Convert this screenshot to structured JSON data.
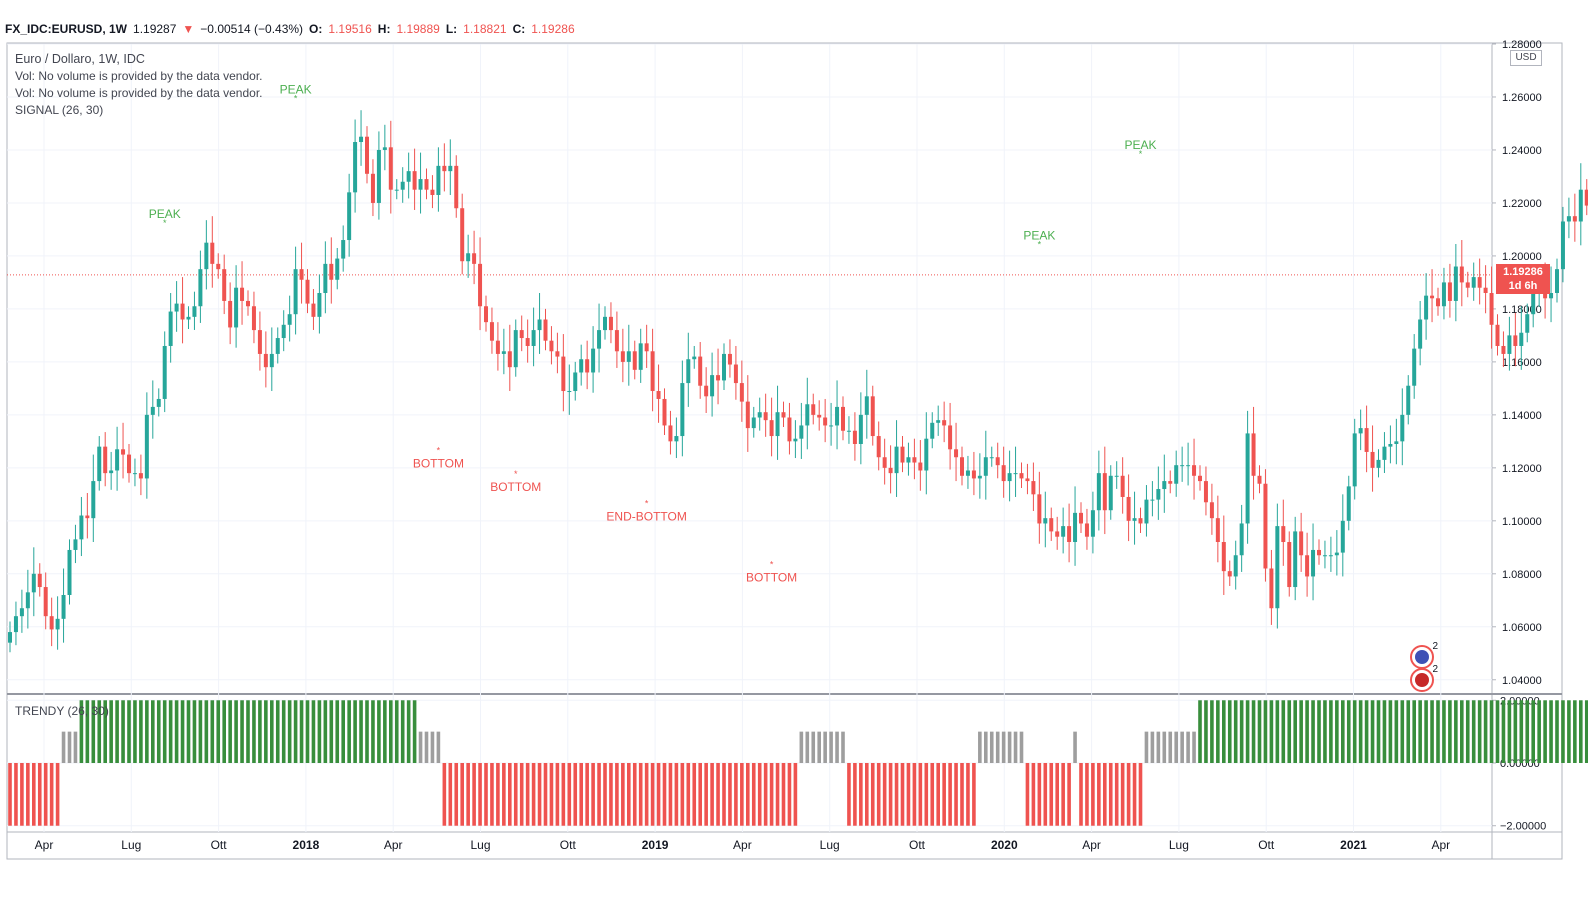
{
  "header": {
    "symbol": "FX_IDC:EURUSD, 1W",
    "last": "1.19287",
    "change": "−0.00514 (−0.43%)",
    "o_label": "O:",
    "o": "1.19516",
    "h_label": "H:",
    "h": "1.19889",
    "l_label": "L:",
    "l": "1.18821",
    "c_label": "C:",
    "c": "1.19286"
  },
  "legend": {
    "title": "Euro / Dollaro, 1W, IDC",
    "vol1": "Vol: No volume is provided by the data vendor.",
    "vol2": "Vol: No volume is provided by the data vendor.",
    "signal": "SIGNAL (26, 30)"
  },
  "indicator": {
    "label": "TRENDY (26, 30)"
  },
  "price_axis": {
    "currency": "USD",
    "last_price": "1.19286",
    "countdown": "1d 6h"
  },
  "colors": {
    "up": "#26a69a",
    "up_bar": "#388e3c",
    "down": "#ef5350",
    "neutral": "#9e9e9e",
    "peak": "#4caf50",
    "bottom": "#ef5350"
  },
  "flags": [
    {
      "icon": "eu-us-flag-icon",
      "count": "2"
    },
    {
      "icon": "us-flag-icon",
      "count": "2"
    }
  ],
  "chart_data": {
    "type": "candlestick",
    "price_ticks": [
      "1.28000",
      "1.26000",
      "1.24000",
      "1.22000",
      "1.20000",
      "1.18000",
      "1.16000",
      "1.14000",
      "1.12000",
      "1.10000",
      "1.08000",
      "1.06000",
      "1.04000"
    ],
    "ylim": [
      1.035,
      1.28
    ],
    "time_ticks": [
      "Apr",
      "Lug",
      "Ott",
      "2018",
      "Apr",
      "Lug",
      "Ott",
      "2019",
      "Apr",
      "Lug",
      "Ott",
      "2020",
      "Apr",
      "Lug",
      "Ott",
      "2021",
      "Apr"
    ],
    "indicator_ticks": [
      "2.00000",
      "0.00000",
      "−2.00000"
    ],
    "indicator_ylim": [
      -2.2,
      2.2
    ],
    "annotations": [
      {
        "text": "PEAK",
        "kind": "peak",
        "bar": 26,
        "price": 1.209
      },
      {
        "text": "PEAK",
        "kind": "peak",
        "bar": 48,
        "price": 1.256
      },
      {
        "text": "BOTTOM",
        "kind": "bottom",
        "bar": 72,
        "price": 1.13
      },
      {
        "text": "BOTTOM",
        "kind": "bottom",
        "bar": 85,
        "price": 1.121
      },
      {
        "text": "END-BOTTOM",
        "kind": "bottom",
        "bar": 107,
        "price": 1.11
      },
      {
        "text": "BOTTOM",
        "kind": "bottom",
        "bar": 128,
        "price": 1.087
      },
      {
        "text": "PEAK",
        "kind": "peak",
        "bar": 173,
        "price": 1.201
      },
      {
        "text": "PEAK",
        "kind": "peak",
        "bar": 190,
        "price": 1.235
      }
    ],
    "candles_close": [
      1.058,
      1.064,
      1.067,
      1.073,
      1.08,
      1.075,
      1.064,
      1.059,
      1.063,
      1.072,
      1.089,
      1.093,
      1.102,
      1.101,
      1.115,
      1.128,
      1.118,
      1.119,
      1.127,
      1.125,
      1.118,
      1.118,
      1.116,
      1.14,
      1.143,
      1.146,
      1.166,
      1.179,
      1.182,
      1.176,
      1.177,
      1.181,
      1.195,
      1.205,
      1.197,
      1.195,
      1.183,
      1.173,
      1.188,
      1.183,
      1.181,
      1.172,
      1.163,
      1.158,
      1.163,
      1.169,
      1.174,
      1.178,
      1.195,
      1.191,
      1.182,
      1.177,
      1.186,
      1.197,
      1.191,
      1.199,
      1.206,
      1.224,
      1.243,
      1.245,
      1.231,
      1.22,
      1.24,
      1.241,
      1.225,
      1.225,
      1.228,
      1.232,
      1.225,
      1.229,
      1.225,
      1.223,
      1.234,
      1.232,
      1.234,
      1.218,
      1.198,
      1.201,
      1.197,
      1.181,
      1.175,
      1.168,
      1.163,
      1.164,
      1.158,
      1.172,
      1.169,
      1.166,
      1.172,
      1.176,
      1.168,
      1.164,
      1.162,
      1.149,
      1.149,
      1.156,
      1.161,
      1.156,
      1.165,
      1.172,
      1.177,
      1.172,
      1.164,
      1.16,
      1.164,
      1.157,
      1.167,
      1.164,
      1.149,
      1.146,
      1.136,
      1.13,
      1.132,
      1.152,
      1.161,
      1.162,
      1.151,
      1.147,
      1.155,
      1.153,
      1.163,
      1.159,
      1.152,
      1.145,
      1.135,
      1.139,
      1.141,
      1.138,
      1.132,
      1.141,
      1.139,
      1.13,
      1.131,
      1.136,
      1.144,
      1.14,
      1.139,
      1.136,
      1.136,
      1.143,
      1.134,
      1.134,
      1.129,
      1.14,
      1.147,
      1.132,
      1.124,
      1.12,
      1.118,
      1.128,
      1.122,
      1.124,
      1.122,
      1.119,
      1.131,
      1.137,
      1.138,
      1.136,
      1.127,
      1.124,
      1.117,
      1.119,
      1.116,
      1.117,
      1.124,
      1.124,
      1.121,
      1.115,
      1.118,
      1.118,
      1.116,
      1.115,
      1.11,
      1.099,
      1.101,
      1.096,
      1.094,
      1.098,
      1.092,
      1.103,
      1.099,
      1.094,
      1.104,
      1.118,
      1.104,
      1.117,
      1.117,
      1.109,
      1.1,
      1.101,
      1.099,
      1.108,
      1.108,
      1.112,
      1.115,
      1.114,
      1.121,
      1.121,
      1.121,
      1.117,
      1.115,
      1.107,
      1.101,
      1.092,
      1.081,
      1.079,
      1.087,
      1.099,
      1.133,
      1.117,
      1.114,
      1.082,
      1.067,
      1.098,
      1.092,
      1.075,
      1.096,
      1.087,
      1.079,
      1.089,
      1.087,
      1.087,
      1.087,
      1.088,
      1.1,
      1.113,
      1.133,
      1.135,
      1.126,
      1.12,
      1.123,
      1.128,
      1.129,
      1.13,
      1.14,
      1.151,
      1.165,
      1.176,
      1.185,
      1.184,
      1.181,
      1.19,
      1.183,
      1.196,
      1.19,
      1.188,
      1.192,
      1.188,
      1.186,
      1.174,
      1.166,
      1.163,
      1.17,
      1.166,
      1.171,
      1.178,
      1.187,
      1.189,
      1.184,
      1.186,
      1.195,
      1.213,
      1.215,
      1.213,
      1.225,
      1.219,
      1.227,
      1.224,
      1.217,
      1.212,
      1.215,
      1.21,
      1.214,
      1.208,
      1.204,
      1.21,
      1.211,
      1.204,
      1.191,
      1.193,
      1.193
    ],
    "trend_bars_note": "one bar per week: 1 = bullish (+2), -1 = bearish (-2), 0 = transition (+1 grey)"
  }
}
